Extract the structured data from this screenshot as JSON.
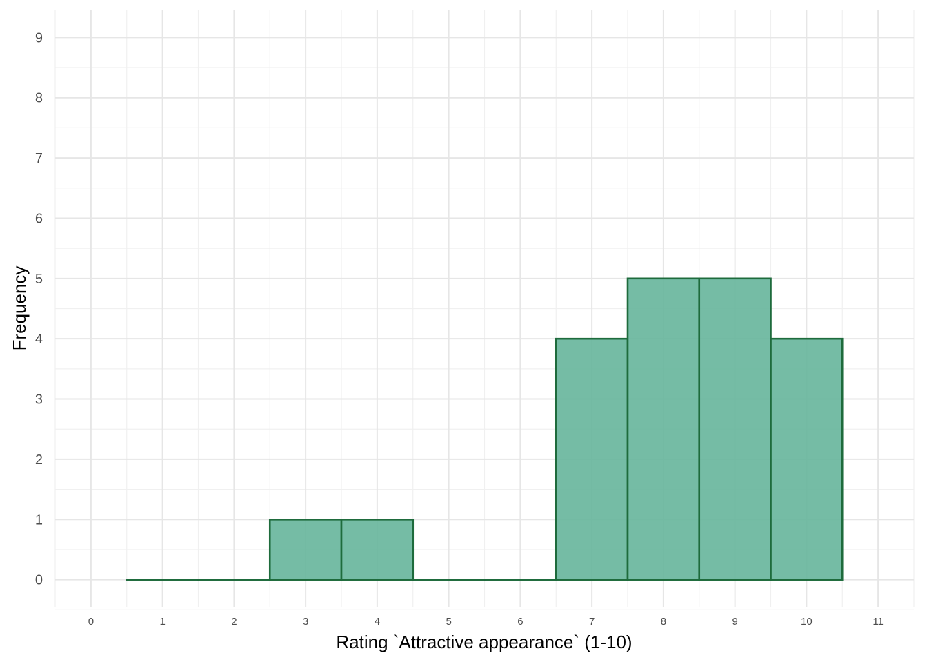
{
  "chart_data": {
    "type": "bar",
    "subtype": "histogram",
    "xlabel": "Rating `Attractive appearance` (1-10)",
    "ylabel": "Frequency",
    "x_ticks": [
      "0",
      "1",
      "2",
      "3",
      "4",
      "5",
      "6",
      "7",
      "8",
      "9",
      "10",
      "11"
    ],
    "y_ticks": [
      "0",
      "1",
      "2",
      "3",
      "4",
      "5",
      "6",
      "7",
      "8",
      "9"
    ],
    "xlim": [
      -0.5,
      11.5
    ],
    "ylim": [
      -0.45,
      9.45
    ],
    "bins": [
      {
        "center": 1,
        "value": 0
      },
      {
        "center": 2,
        "value": 0
      },
      {
        "center": 3,
        "value": 1
      },
      {
        "center": 4,
        "value": 1
      },
      {
        "center": 5,
        "value": 0
      },
      {
        "center": 6,
        "value": 0
      },
      {
        "center": 7,
        "value": 4
      },
      {
        "center": 8,
        "value": 5
      },
      {
        "center": 9,
        "value": 5
      },
      {
        "center": 10,
        "value": 4
      }
    ],
    "bin_width": 1,
    "grid": true,
    "colors": {
      "fill": "#66b59b",
      "outline": "#1e6b3c"
    }
  }
}
